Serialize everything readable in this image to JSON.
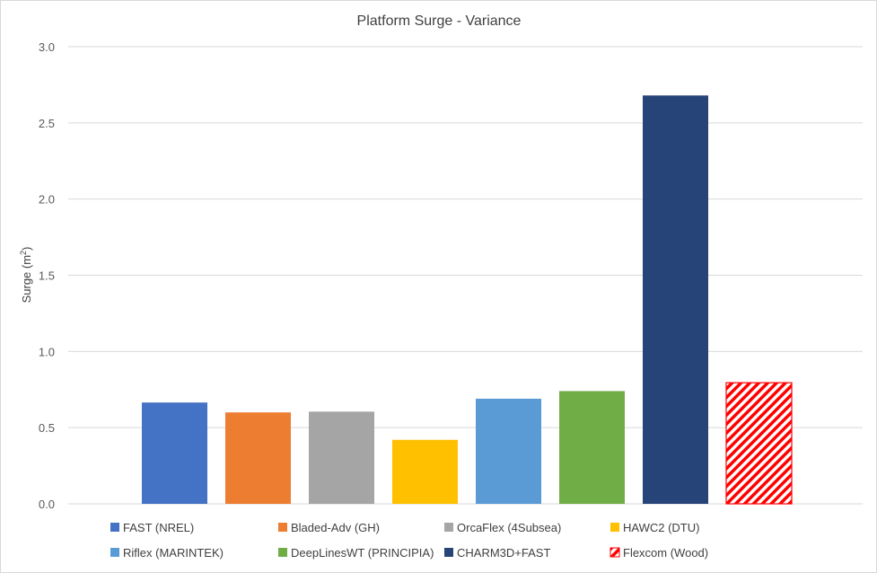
{
  "chart_data": {
    "type": "bar",
    "title": "Platform Surge - Variance",
    "ylabel": "Surge (m",
    "ylabel_sup": "2",
    "ylabel_close": ")",
    "xlabel": "",
    "ylim": [
      0,
      3.0
    ],
    "yticks": [
      0.0,
      0.5,
      1.0,
      1.5,
      2.0,
      2.5,
      3.0
    ],
    "ytick_labels": [
      "0.0",
      "0.5",
      "1.0",
      "1.5",
      "2.0",
      "2.5",
      "3.0"
    ],
    "grid": true,
    "legend_position": "bottom",
    "series": [
      {
        "name": "FAST (NREL)",
        "value": 0.665,
        "color": "#4472c4",
        "pattern": "solid"
      },
      {
        "name": "Bladed-Adv (GH)",
        "value": 0.6,
        "color": "#ed7d31",
        "pattern": "solid"
      },
      {
        "name": "OrcaFlex (4Subsea)",
        "value": 0.605,
        "color": "#a5a5a5",
        "pattern": "solid"
      },
      {
        "name": "HAWC2 (DTU)",
        "value": 0.42,
        "color": "#ffc000",
        "pattern": "solid"
      },
      {
        "name": "Riflex (MARINTEK)",
        "value": 0.69,
        "color": "#5b9bd5",
        "pattern": "solid"
      },
      {
        "name": "DeepLinesWT (PRINCIPIA)",
        "value": 0.74,
        "color": "#70ad47",
        "pattern": "solid"
      },
      {
        "name": "CHARM3D+FAST",
        "value": 2.68,
        "color": "#264478",
        "pattern": "solid"
      },
      {
        "name": "Flexcom (Wood)",
        "value": 0.795,
        "color": "#ff0000",
        "pattern": "diagonal-hatch"
      }
    ]
  }
}
